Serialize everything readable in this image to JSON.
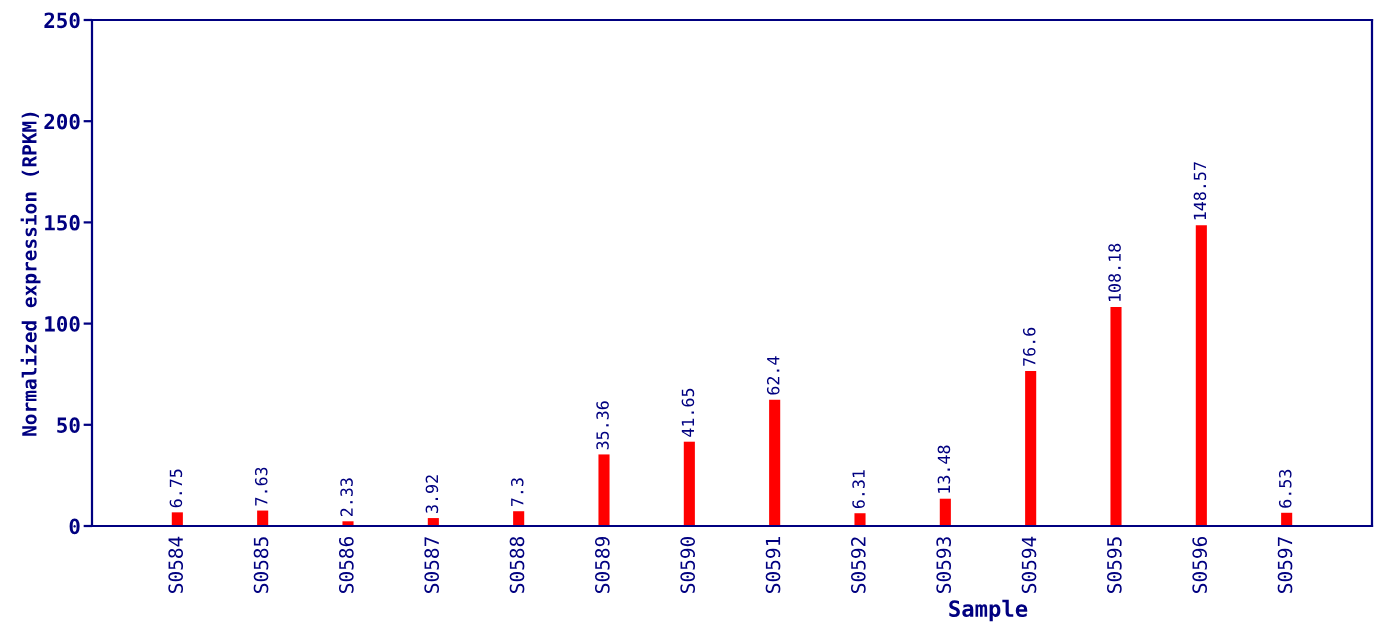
{
  "chart_data": {
    "type": "bar",
    "xlabel": "Sample",
    "ylabel": "Normalized expression (RPKM)",
    "categories": [
      "S0584",
      "S0585",
      "S0586",
      "S0587",
      "S0588",
      "S0589",
      "S0590",
      "S0591",
      "S0592",
      "S0593",
      "S0594",
      "S0595",
      "S0596",
      "S0597"
    ],
    "values": [
      6.75,
      7.63,
      2.33,
      3.92,
      7.3,
      35.36,
      41.65,
      62.4,
      6.31,
      13.48,
      76.6,
      108.18,
      148.57,
      6.53
    ],
    "color": "#ff0000",
    "ylim": [
      0,
      250
    ],
    "yticks": [
      0,
      50,
      100,
      150,
      200,
      250
    ],
    "data_labels": true,
    "grid": false,
    "legend": false
  }
}
